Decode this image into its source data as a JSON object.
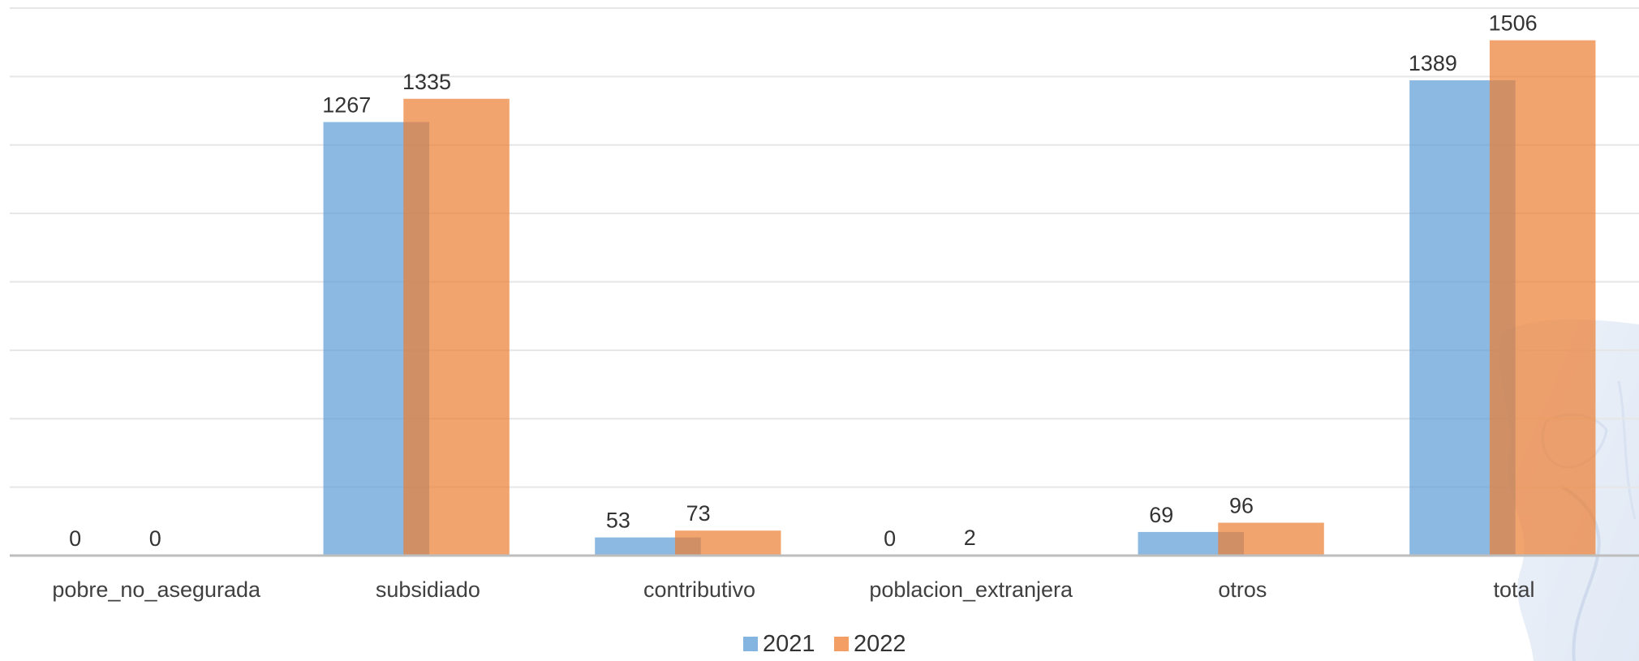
{
  "chart_data": {
    "type": "bar",
    "title": "",
    "xlabel": "",
    "ylabel": "",
    "categories": [
      "pobre_no_asegurada",
      "subsidiado",
      "contributivo",
      "poblacion_extranjera",
      "otros",
      "total"
    ],
    "series": [
      {
        "name": "2021",
        "color": "#5B9BD5",
        "values": [
          0,
          1267,
          53,
          0,
          69,
          1389
        ]
      },
      {
        "name": "2022",
        "color": "#ED7D31",
        "values": [
          0,
          1335,
          73,
          2,
          96,
          1506
        ]
      }
    ],
    "ylim": [
      0,
      1600
    ],
    "grid": true,
    "legend": "bottom-center",
    "overlapping_bars": true
  }
}
